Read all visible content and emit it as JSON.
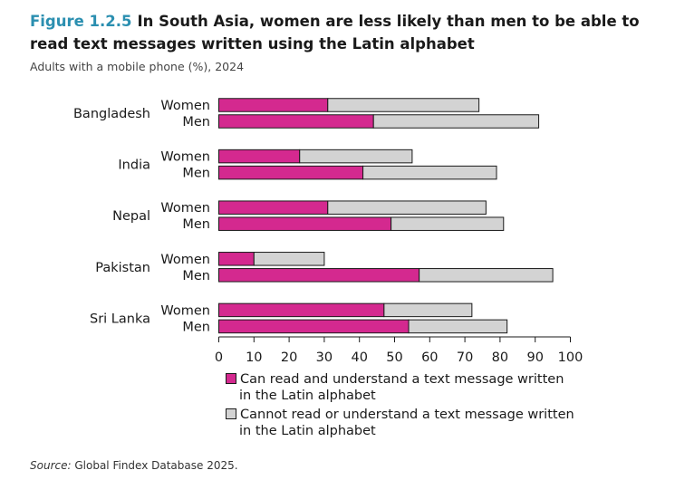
{
  "figure": {
    "number": "Figure 1.2.5",
    "title": "In South Asia, women are less likely than men to be able to read text messages written using the Latin alphabet",
    "subtitle": "Adults with a mobile phone (%), 2024"
  },
  "source": {
    "label": "Source:",
    "text": "Global Findex Database 2025."
  },
  "chart_data": {
    "type": "bar",
    "orientation": "horizontal",
    "stacked": true,
    "categories": [
      "Bangladesh",
      "India",
      "Nepal",
      "Pakistan",
      "Sri Lanka"
    ],
    "groups": [
      "Women",
      "Men"
    ],
    "series": [
      {
        "name": "Can read and understand a text message written in the Latin alphabet",
        "legend_lines": [
          "Can read and understand a text message written",
          "in the Latin alphabet"
        ],
        "color": "#d4298f",
        "values": {
          "Bangladesh": {
            "Women": 31,
            "Men": 44
          },
          "India": {
            "Women": 23,
            "Men": 41
          },
          "Nepal": {
            "Women": 31,
            "Men": 49
          },
          "Pakistan": {
            "Women": 10,
            "Men": 57
          },
          "Sri Lanka": {
            "Women": 47,
            "Men": 54
          }
        }
      },
      {
        "name": "Cannot read or understand a text message written in the Latin alphabet",
        "legend_lines": [
          "Cannot read or understand a text message written",
          "in the Latin alphabet"
        ],
        "color": "#d3d3d3",
        "values": {
          "Bangladesh": {
            "Women": 43,
            "Men": 47
          },
          "India": {
            "Women": 32,
            "Men": 38
          },
          "Nepal": {
            "Women": 45,
            "Men": 32
          },
          "Pakistan": {
            "Women": 20,
            "Men": 38
          },
          "Sri Lanka": {
            "Women": 25,
            "Men": 28
          }
        }
      }
    ],
    "xlim": [
      0,
      100
    ],
    "xticks": [
      0,
      10,
      20,
      30,
      40,
      50,
      60,
      70,
      80,
      90,
      100
    ],
    "grid": false,
    "legend_position": "bottom"
  }
}
